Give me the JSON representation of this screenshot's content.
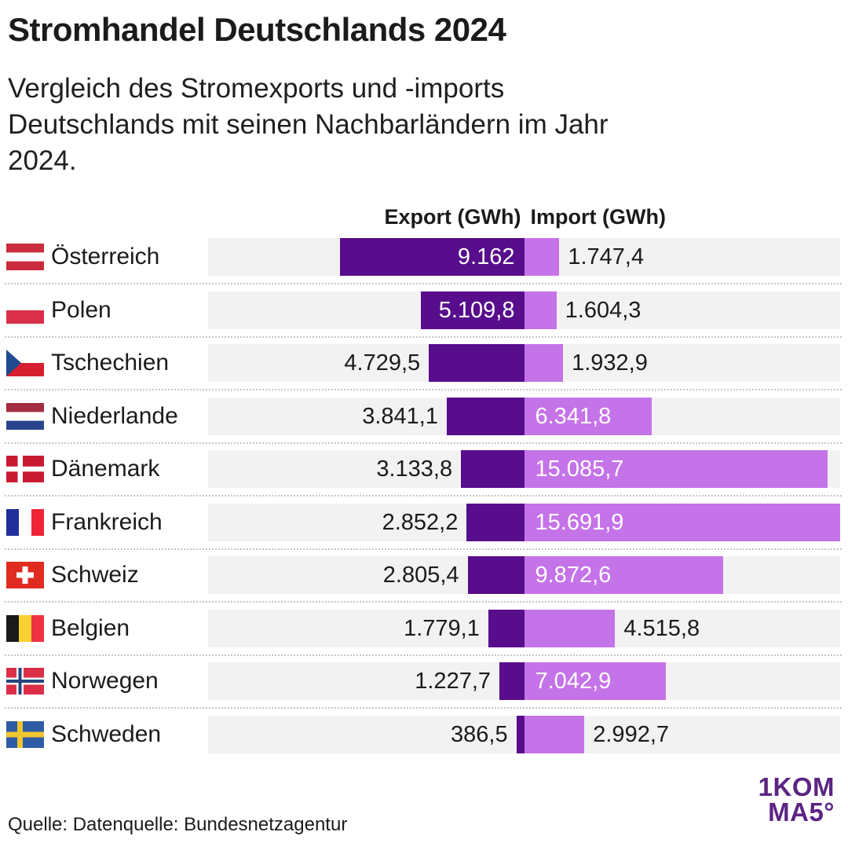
{
  "title": "Stromhandel Deutschlands 2024",
  "subtitle": "Vergleich des Stromexports und -imports Deutschlands mit seinen Nachbarländern im Jahr 2024.",
  "subtitle_lines": [
    "Vergleich des Stromexports und -imports",
    "Deutschlands mit seinen Nachbarländern im Jahr",
    "2024."
  ],
  "columns": {
    "export_label": "Export (GWh)",
    "import_label": "Import (GWh)"
  },
  "source": "Quelle: Datenquelle: Bundesnetzagentur",
  "logo": {
    "line1": "1KOM",
    "line2": "MA5°"
  },
  "colors": {
    "export_bar": "#570d8c",
    "import_bar": "#c573e8",
    "row_background": "#f2f2f3",
    "text": "#1b1b1d",
    "logo": "#5c2483"
  },
  "chart_data": {
    "type": "bar",
    "variant": "diverging-horizontal",
    "title": "Stromhandel Deutschlands 2024",
    "unit": "GWh",
    "axis_max_per_side": 15691.9,
    "legend": [
      "Export (GWh)",
      "Import (GWh)"
    ],
    "rows": [
      {
        "country": "Österreich",
        "flag": "austria",
        "export": 9162,
        "export_label": "9.162",
        "import": 1747.4,
        "import_label": "1.747,4"
      },
      {
        "country": "Polen",
        "flag": "poland",
        "export": 5109.8,
        "export_label": "5.109,8",
        "import": 1604.3,
        "import_label": "1.604,3"
      },
      {
        "country": "Tschechien",
        "flag": "czechia",
        "export": 4729.5,
        "export_label": "4.729,5",
        "import": 1932.9,
        "import_label": "1.932,9"
      },
      {
        "country": "Niederlande",
        "flag": "netherlands",
        "export": 3841.1,
        "export_label": "3.841,1",
        "import": 6341.8,
        "import_label": "6.341,8"
      },
      {
        "country": "Dänemark",
        "flag": "denmark",
        "export": 3133.8,
        "export_label": "3.133,8",
        "import": 15085.7,
        "import_label": "15.085,7"
      },
      {
        "country": "Frankreich",
        "flag": "france",
        "export": 2852.2,
        "export_label": "2.852,2",
        "import": 15691.9,
        "import_label": "15.691,9"
      },
      {
        "country": "Schweiz",
        "flag": "switzerland",
        "export": 2805.4,
        "export_label": "2.805,4",
        "import": 9872.6,
        "import_label": "9.872,6"
      },
      {
        "country": "Belgien",
        "flag": "belgium",
        "export": 1779.1,
        "export_label": "1.779,1",
        "import": 4515.8,
        "import_label": "4.515,8"
      },
      {
        "country": "Norwegen",
        "flag": "norway",
        "export": 1227.7,
        "export_label": "1.227,7",
        "import": 7042.9,
        "import_label": "7.042,9"
      },
      {
        "country": "Schweden",
        "flag": "sweden",
        "export": 386.5,
        "export_label": "386,5",
        "import": 2992.7,
        "import_label": "2.992,7"
      }
    ]
  }
}
